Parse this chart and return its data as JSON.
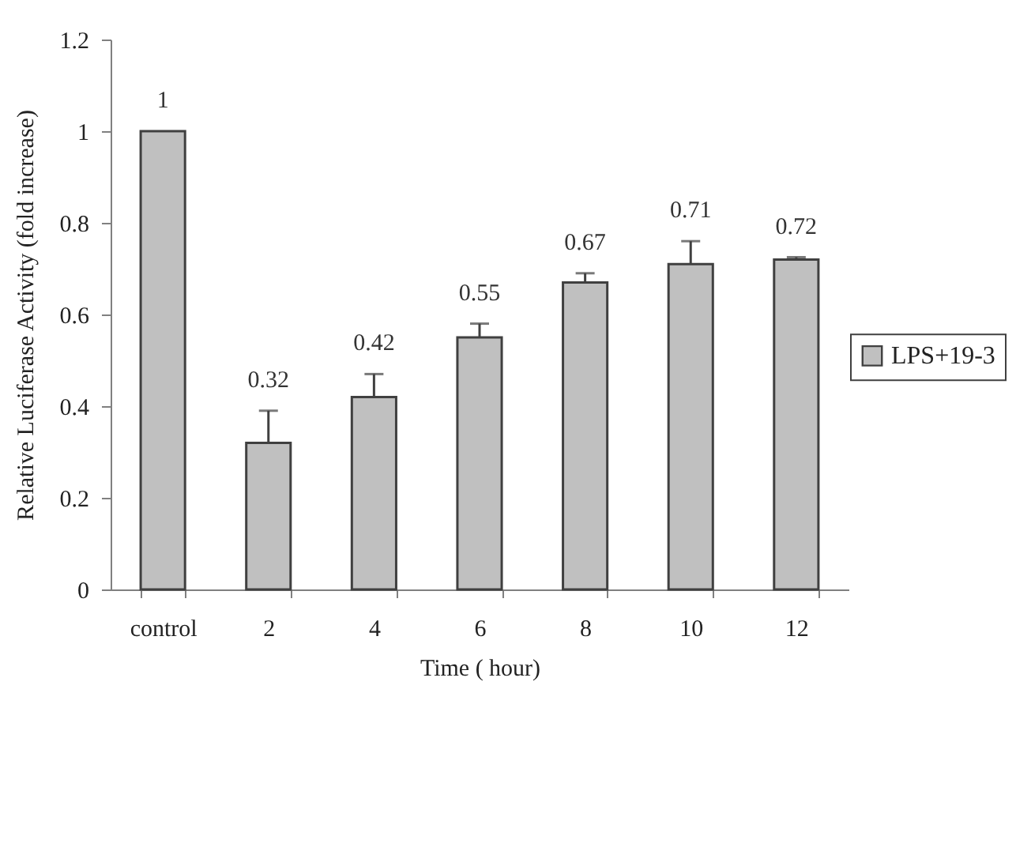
{
  "chart_data": {
    "type": "bar",
    "xlabel": "Time ( hour)",
    "ylabel": "Relative Luciferase Activity (fold increase)",
    "categories": [
      "control",
      "2",
      "4",
      "6",
      "8",
      "10",
      "12"
    ],
    "series": [
      {
        "name": "LPS+19-3",
        "color": "#c0c0c0",
        "values": [
          1,
          0.32,
          0.42,
          0.55,
          0.67,
          0.71,
          0.72
        ],
        "errors": [
          null,
          [
            0.32,
            0.39
          ],
          [
            0.42,
            0.47
          ],
          [
            0.55,
            0.58
          ],
          [
            0.67,
            0.69
          ],
          [
            0.71,
            0.76
          ],
          [
            0.72,
            0.725
          ]
        ]
      }
    ],
    "ylim": [
      0,
      1.2
    ],
    "yticks": [
      0,
      0.2,
      0.4,
      0.6,
      0.8,
      1,
      1.2
    ],
    "data_labels": true,
    "legend": "right",
    "grid": false
  }
}
